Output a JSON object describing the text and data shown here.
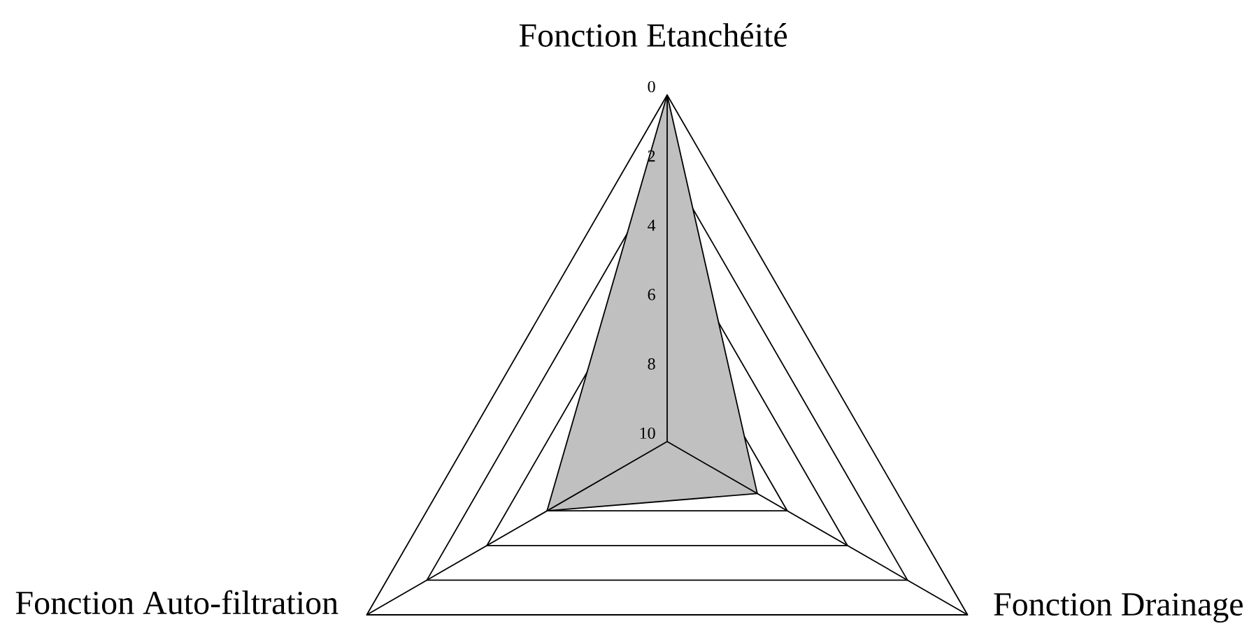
{
  "chart_data": {
    "type": "radar",
    "categories": [
      "Fonction Etanchéité",
      "Fonction Drainage",
      "Fonction Auto-filtration"
    ],
    "series": [
      {
        "color": "#c0c0c0",
        "values": [
          0,
          7,
          6
        ]
      }
    ],
    "ylim": [
      10,
      0
    ],
    "yticks": [
      0,
      2,
      4,
      6,
      8,
      10
    ],
    "grid": true
  }
}
